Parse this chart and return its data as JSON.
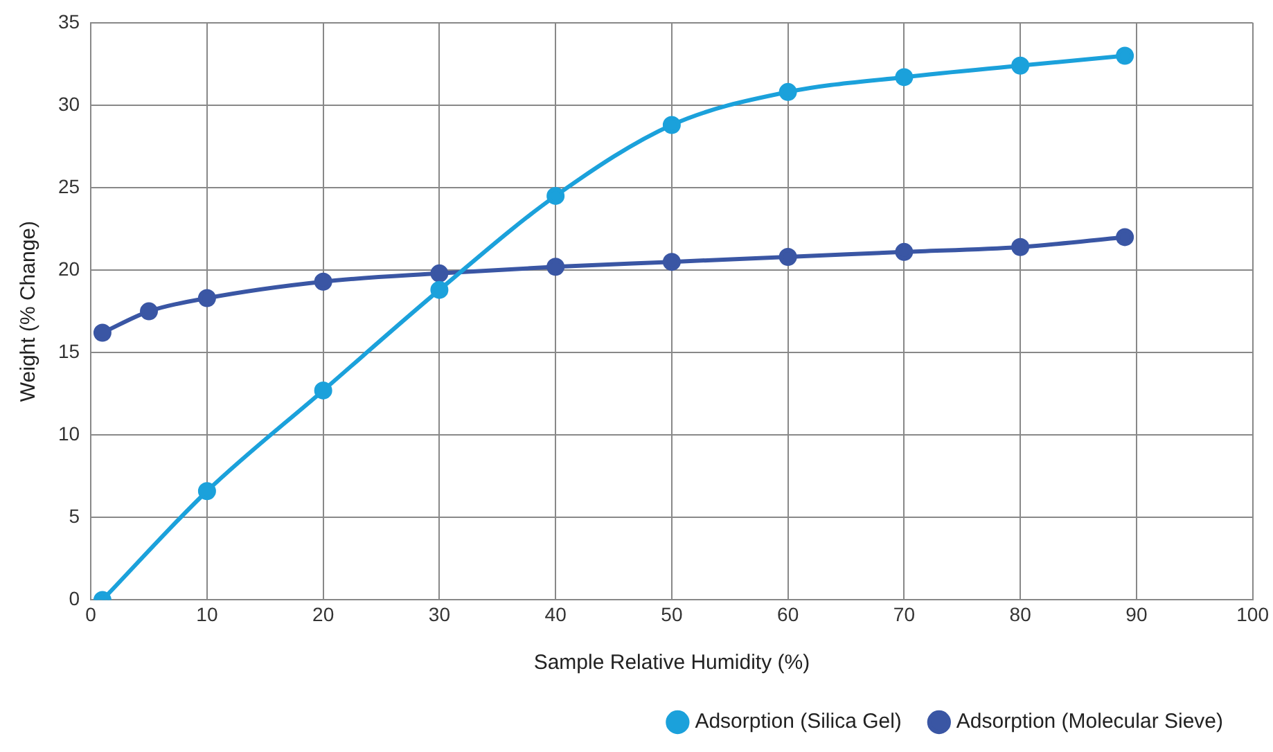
{
  "chart_data": {
    "type": "line",
    "xlabel": "Sample Relative Humidity (%)",
    "ylabel": "Weight (% Change)",
    "xlim": [
      0,
      100
    ],
    "xticks": [
      0,
      10,
      20,
      30,
      40,
      50,
      60,
      70,
      80,
      90,
      100
    ],
    "ylim": [
      0,
      35
    ],
    "yticks": [
      0,
      5,
      10,
      15,
      20,
      25,
      30,
      35
    ],
    "grid": true,
    "legend": "bottom right",
    "marker": "circle",
    "line_style": "solid",
    "series": [
      {
        "name": "Adsorption (Silica Gel)",
        "color": "#1ba1db",
        "x": [
          1,
          10,
          20,
          30,
          40,
          50,
          60,
          70,
          80,
          89
        ],
        "values": [
          0,
          6.6,
          12.7,
          18.8,
          24.5,
          28.8,
          30.8,
          31.7,
          32.4,
          33.0
        ]
      },
      {
        "name": "Adsorption (Molecular Sieve)",
        "color": "#3a56a4",
        "x": [
          1,
          5,
          10,
          20,
          30,
          40,
          50,
          60,
          70,
          80,
          89
        ],
        "values": [
          16.2,
          17.5,
          18.3,
          19.3,
          19.8,
          20.2,
          20.5,
          20.8,
          21.1,
          21.4,
          22.0
        ]
      }
    ]
  }
}
